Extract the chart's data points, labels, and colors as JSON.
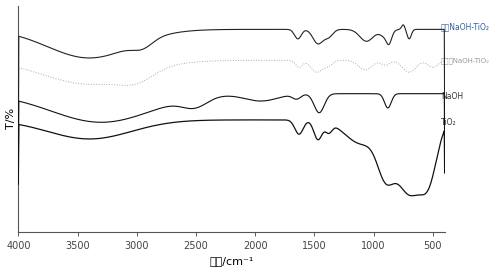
{
  "xlabel": "波数/cm⁻¹",
  "ylabel": "T/%",
  "xlim": [
    4000,
    400
  ],
  "background_color": "#ffffff",
  "labels": {
    "calcined": "煬烧NaOH-TiO₂",
    "uncalcined": "未煬烧NaOH-TiO₂",
    "naoh": "NaOH",
    "tio2": "TiO₂"
  },
  "label_colors": {
    "calcined": "#3060a0",
    "uncalcined": "#999999",
    "naoh": "#333333",
    "tio2": "#333333"
  },
  "line_colors": {
    "calcined": "#222222",
    "uncalcined": "#aaaaaa",
    "naoh": "#111111",
    "tio2": "#111111"
  }
}
